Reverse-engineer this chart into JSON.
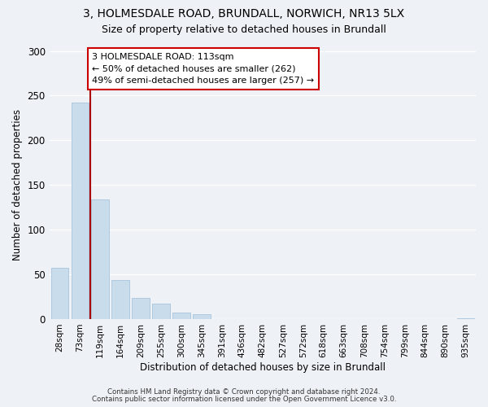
{
  "title1": "3, HOLMESDALE ROAD, BRUNDALL, NORWICH, NR13 5LX",
  "title2": "Size of property relative to detached houses in Brundall",
  "xlabel": "Distribution of detached houses by size in Brundall",
  "ylabel": "Number of detached properties",
  "bar_color": "#c8dcec",
  "bar_edge_color": "#a8c4dc",
  "bin_labels": [
    "28sqm",
    "73sqm",
    "119sqm",
    "164sqm",
    "209sqm",
    "255sqm",
    "300sqm",
    "345sqm",
    "391sqm",
    "436sqm",
    "482sqm",
    "527sqm",
    "572sqm",
    "618sqm",
    "663sqm",
    "708sqm",
    "754sqm",
    "799sqm",
    "844sqm",
    "890sqm",
    "935sqm"
  ],
  "bar_heights": [
    57,
    242,
    134,
    44,
    24,
    17,
    7,
    5,
    0,
    0,
    0,
    0,
    0,
    0,
    0,
    0,
    0,
    0,
    0,
    0,
    1
  ],
  "property_line_x": 1.5,
  "property_line_color": "#aa0000",
  "annotation_text": "3 HOLMESDALE ROAD: 113sqm\n← 50% of detached houses are smaller (262)\n49% of semi-detached houses are larger (257) →",
  "annotation_box_color": "#ffffff",
  "annotation_box_edge_color": "#cc0000",
  "ylim": [
    0,
    300
  ],
  "yticks": [
    0,
    50,
    100,
    150,
    200,
    250,
    300
  ],
  "footer1": "Contains HM Land Registry data © Crown copyright and database right 2024.",
  "footer2": "Contains public sector information licensed under the Open Government Licence v3.0.",
  "background_color": "#eef2f6",
  "grid_color": "#ffffff",
  "title1_fontsize": 10,
  "title2_fontsize": 9
}
